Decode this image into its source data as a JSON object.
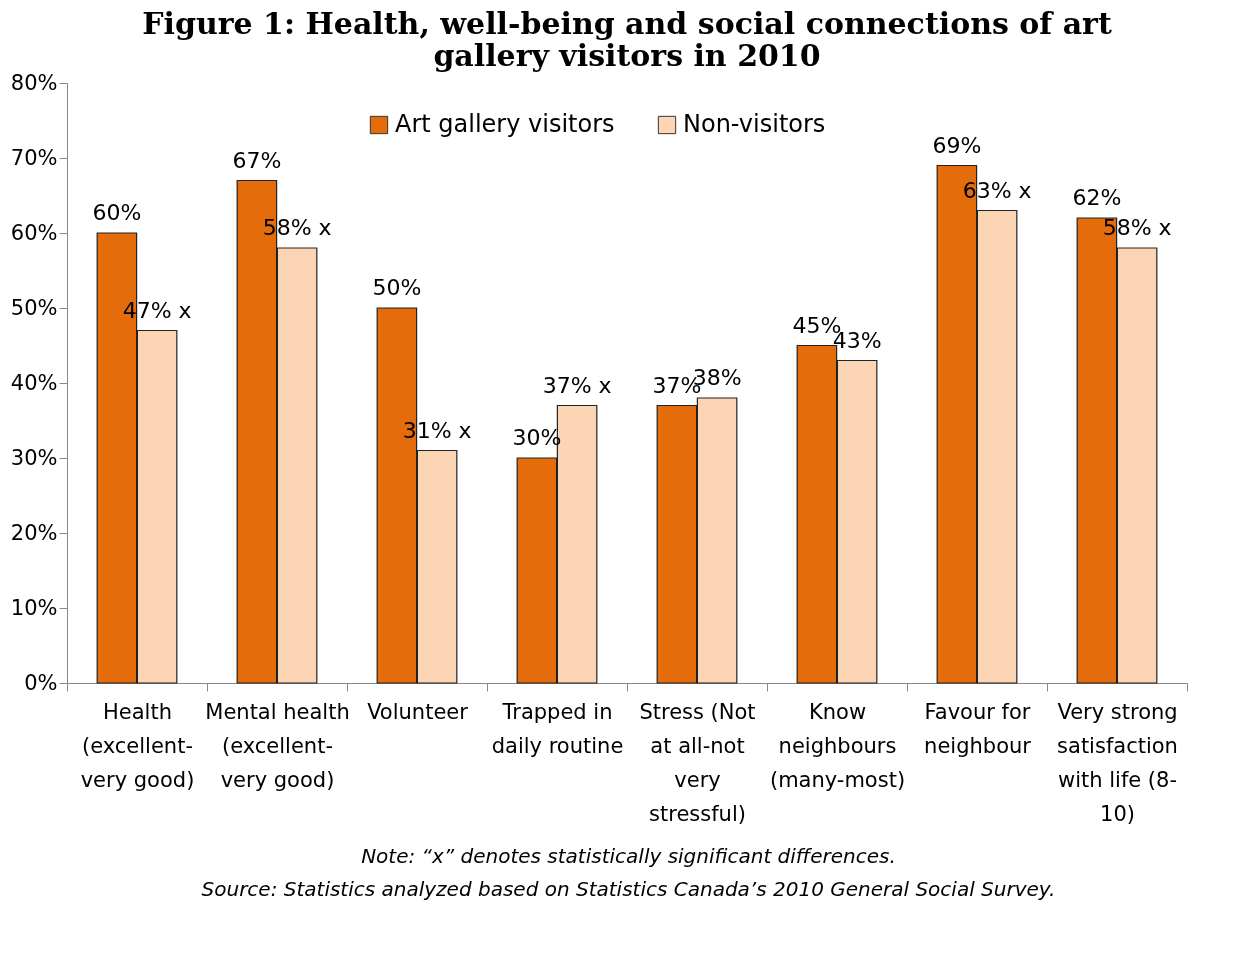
{
  "chart_data": {
    "type": "bar",
    "title": "Figure 1: Health, well-being and social connections of art gallery visitors in 2010",
    "categories": [
      "Health (excellent-very good)",
      "Mental health (excellent-very good)",
      "Volunteer",
      "Trapped in daily routine",
      "Stress (Not at all-not very stressful)",
      "Know neighbours (many-most)",
      "Favour for neighbour",
      "Very strong satisfaction with life (8-10)"
    ],
    "series": [
      {
        "name": "Art gallery visitors",
        "color": "#e46c0a",
        "values": [
          60,
          67,
          50,
          30,
          37,
          45,
          69,
          62
        ],
        "value_labels": [
          "60%",
          "67%",
          "50%",
          "30%",
          "37%",
          "45%",
          "69%",
          "62%"
        ]
      },
      {
        "name": "Non-visitors",
        "color": "#fcd5b5",
        "values": [
          47,
          58,
          31,
          37,
          38,
          43,
          63,
          58
        ],
        "value_labels": [
          "47% x",
          "58% x",
          "31% x",
          "37% x",
          "38%",
          "43%",
          "63% x",
          "58% x"
        ]
      }
    ],
    "ylim": [
      0,
      80
    ],
    "yticks": [
      {
        "value": 0,
        "label": "0%"
      },
      {
        "value": 10,
        "label": "10%"
      },
      {
        "value": 20,
        "label": "20%"
      },
      {
        "value": 30,
        "label": "30%"
      },
      {
        "value": 40,
        "label": "40%"
      },
      {
        "value": 50,
        "label": "50%"
      },
      {
        "value": 60,
        "label": "60%"
      },
      {
        "value": 70,
        "label": "70%"
      },
      {
        "value": 80,
        "label": "80%"
      }
    ],
    "grid": false,
    "legend": "top",
    "annotations": [
      "Note: “x” denotes statistically significant differences.",
      "Source: Statistics analyzed based on Statistics Canada’s 2010 General Social Survey."
    ]
  }
}
